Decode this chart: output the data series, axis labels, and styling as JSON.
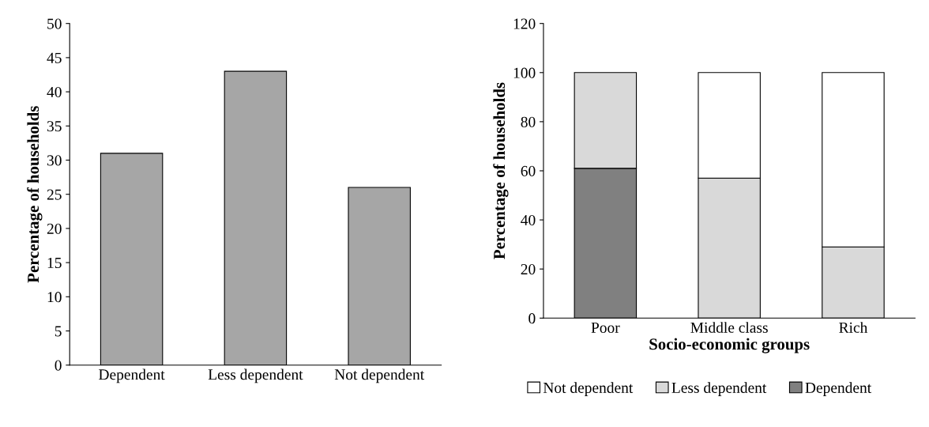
{
  "chart_data": [
    {
      "type": "bar",
      "ylabel": "Percentage of households",
      "categories": [
        "Dependent",
        "Less dependent",
        "Not dependent"
      ],
      "values": [
        31,
        43,
        26
      ],
      "color": "#a6a6a6",
      "ylim": [
        0,
        50
      ],
      "yticks": [
        0,
        5,
        10,
        15,
        20,
        25,
        30,
        35,
        40,
        45,
        50
      ],
      "grid": false,
      "legend": false
    },
    {
      "type": "bar",
      "stacked": true,
      "xlabel": "Socio-economic groups",
      "ylabel": "Percentage of households",
      "categories": [
        "Poor",
        "Middle class",
        "Rich"
      ],
      "series": [
        {
          "name": "Dependent",
          "color": "#808080",
          "values": [
            61,
            0,
            0
          ]
        },
        {
          "name": "Less dependent",
          "color": "#d9d9d9",
          "values": [
            39,
            57,
            29
          ]
        },
        {
          "name": "Not dependent",
          "color": "#ffffff",
          "values": [
            0,
            43,
            71
          ]
        }
      ],
      "ylim": [
        0,
        120
      ],
      "yticks": [
        0,
        20,
        40,
        60,
        80,
        100,
        120
      ],
      "grid": false,
      "legend": "bottom"
    }
  ]
}
